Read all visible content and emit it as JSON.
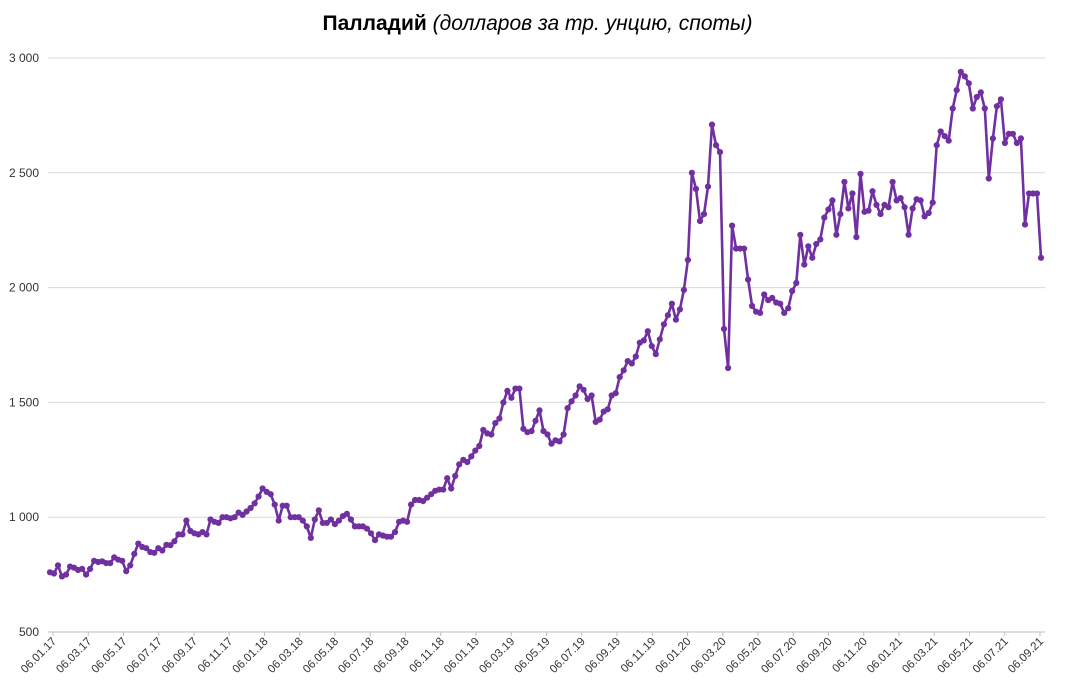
{
  "chart_data": {
    "type": "line",
    "title": "Палладий",
    "subtitle": "(долларов за тр. унцию, споты)",
    "xlabel": "",
    "ylabel": "",
    "ylim": [
      500,
      3000
    ],
    "yticks": [
      500,
      1000,
      1500,
      2000,
      2500,
      3000
    ],
    "ytick_labels": [
      "500",
      "1 000",
      "1 500",
      "2 000",
      "2 500",
      "3 000"
    ],
    "x_tick_labels": [
      "06.01.17",
      "06.03.17",
      "06.05.17",
      "06.07.17",
      "06.09.17",
      "06.11.17",
      "06.01.18",
      "06.03.18",
      "06.05.18",
      "06.07.18",
      "06.09.18",
      "06.11.18",
      "06.01.19",
      "06.03.19",
      "06.05.19",
      "06.07.19",
      "06.09.19",
      "06.11.19",
      "06.01.20",
      "06.03.20",
      "06.05.20",
      "06.07.20",
      "06.09.20",
      "06.11.20",
      "06.01.21",
      "06.03.21",
      "06.05.21",
      "06.07.21",
      "06.09.21"
    ],
    "grid": "horizontal",
    "legend": "none",
    "color": "#7030A0",
    "series": [
      {
        "name": "",
        "values": [
          760,
          755,
          790,
          742,
          750,
          785,
          780,
          770,
          775,
          750,
          775,
          810,
          805,
          808,
          800,
          800,
          825,
          815,
          810,
          765,
          790,
          840,
          885,
          870,
          865,
          848,
          845,
          865,
          855,
          880,
          878,
          895,
          925,
          925,
          985,
          940,
          930,
          925,
          935,
          925,
          990,
          980,
          975,
          1000,
          1000,
          995,
          1000,
          1020,
          1010,
          1025,
          1040,
          1060,
          1090,
          1125,
          1110,
          1100,
          1055,
          985,
          1050,
          1050,
          1000,
          1000,
          1000,
          985,
          960,
          910,
          990,
          1030,
          975,
          975,
          990,
          970,
          985,
          1005,
          1015,
          990,
          960,
          960,
          960,
          950,
          930,
          900,
          925,
          920,
          915,
          915,
          935,
          980,
          985,
          980,
          1055,
          1075,
          1075,
          1070,
          1085,
          1100,
          1115,
          1120,
          1120,
          1170,
          1125,
          1180,
          1230,
          1250,
          1240,
          1265,
          1290,
          1310,
          1380,
          1365,
          1360,
          1410,
          1430,
          1500,
          1550,
          1520,
          1560,
          1560,
          1385,
          1370,
          1375,
          1420,
          1465,
          1375,
          1360,
          1320,
          1335,
          1330,
          1360,
          1475,
          1505,
          1530,
          1570,
          1555,
          1515,
          1530,
          1415,
          1425,
          1460,
          1470,
          1530,
          1540,
          1610,
          1640,
          1680,
          1670,
          1700,
          1760,
          1770,
          1810,
          1745,
          1710,
          1775,
          1840,
          1880,
          1930,
          1860,
          1905,
          1990,
          2120,
          2500,
          2430,
          2290,
          2320,
          2440,
          2710,
          2620,
          2590,
          1820,
          1650,
          2270,
          2170,
          2170,
          2170,
          2035,
          1920,
          1895,
          1890,
          1970,
          1945,
          1955,
          1935,
          1930,
          1890,
          1910,
          1985,
          2020,
          2230,
          2100,
          2180,
          2130,
          2190,
          2210,
          2305,
          2340,
          2380,
          2230,
          2320,
          2460,
          2345,
          2410,
          2220,
          2495,
          2330,
          2335,
          2420,
          2360,
          2320,
          2360,
          2350,
          2460,
          2380,
          2390,
          2350,
          2230,
          2345,
          2385,
          2380,
          2310,
          2325,
          2370,
          2620,
          2680,
          2660,
          2640,
          2780,
          2860,
          2940,
          2920,
          2890,
          2780,
          2830,
          2850,
          2780,
          2475,
          2650,
          2790,
          2820,
          2630,
          2670,
          2670,
          2630,
          2650,
          2275,
          2410,
          2410,
          2410,
          2130
        ]
      }
    ]
  }
}
